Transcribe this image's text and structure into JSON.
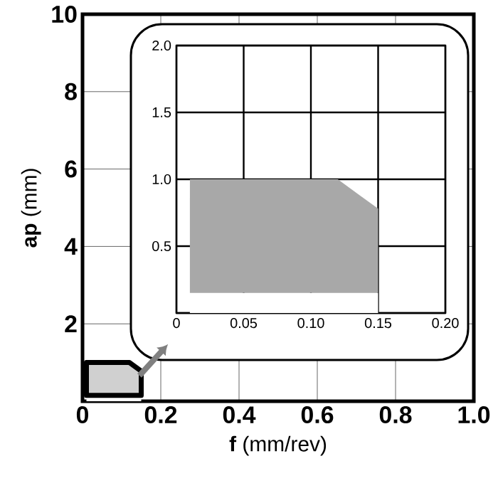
{
  "chart_data": [
    {
      "type": "area",
      "xlabel": "**f** (mm/rev)",
      "ylabel": "**ap** (mm)",
      "xlim": [
        0,
        1
      ],
      "ylim": [
        0,
        10
      ],
      "xticks": [
        0,
        0.2,
        0.4,
        0.6,
        0.8,
        {
          "value": 1,
          "label": "1.0"
        }
      ],
      "yticks": [
        {
          "value": 0,
          "label": null
        },
        2,
        4,
        6,
        8,
        10
      ],
      "grid": true,
      "stacked": true,
      "x": [
        0.01,
        0.12,
        0.15
      ],
      "series": [
        {
          "color": "#ffffff",
          "values": [
            0.15,
            0.15,
            0.15
          ]
        },
        {
          "color": "#d0d0d0",
          "values": [
            0.85,
            0.85,
            0.63
          ]
        }
      ]
    },
    {
      "type": "area",
      "xlim": [
        0,
        0.2
      ],
      "ylim": [
        0,
        2
      ],
      "xticks": [
        0,
        0.05,
        {
          "value": 0.1,
          "label": "0.10"
        },
        0.15,
        {
          "value": 0.2,
          "label": "0.20"
        }
      ],
      "yticks": [
        {
          "value": 0,
          "label": null
        },
        0.5,
        {
          "value": 1,
          "label": "1.0"
        },
        1.5,
        {
          "value": 2,
          "label": "2.0"
        }
      ],
      "grid": true,
      "stacked": true,
      "x": [
        0.01,
        0.12,
        0.15
      ],
      "series": [
        {
          "color": "#ffffff",
          "values": [
            0.15,
            0.15,
            0.15
          ]
        },
        {
          "color": "#a8a8a8",
          "values": [
            0.85,
            0.85,
            0.63
          ]
        }
      ]
    }
  ]
}
